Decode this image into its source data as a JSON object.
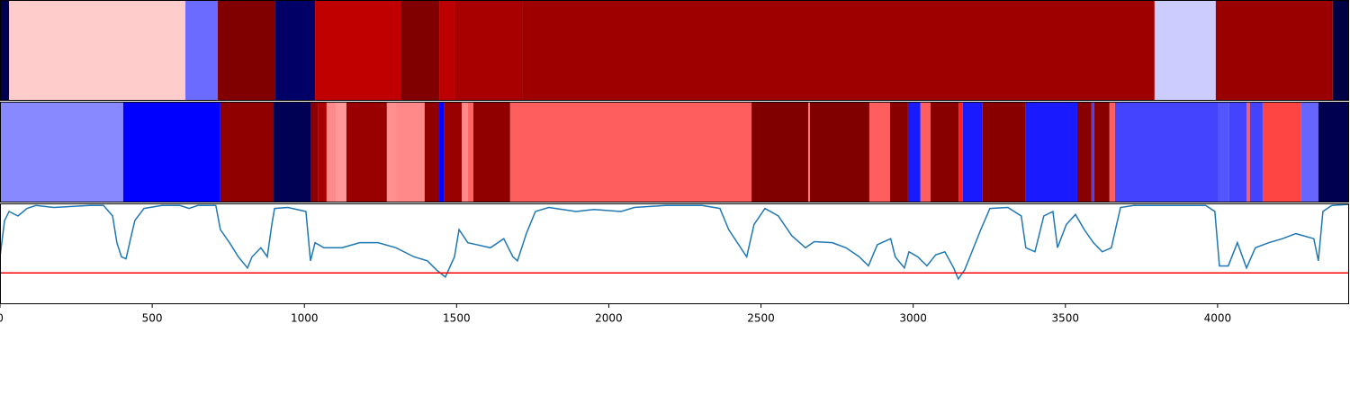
{
  "chart_data": [
    {
      "type": "band",
      "xlim": [
        0,
        4432
      ],
      "segments": [
        {
          "start": 0,
          "end": 30,
          "color": "#000050"
        },
        {
          "start": 30,
          "end": 609,
          "color": "#ffcccc"
        },
        {
          "start": 609,
          "end": 715,
          "color": "#6b6bff"
        },
        {
          "start": 715,
          "end": 905,
          "color": "#800000"
        },
        {
          "start": 905,
          "end": 1035,
          "color": "#000066"
        },
        {
          "start": 1035,
          "end": 1316,
          "color": "#c00000"
        },
        {
          "start": 1316,
          "end": 1443,
          "color": "#800000"
        },
        {
          "start": 1443,
          "end": 1493,
          "color": "#bc0000"
        },
        {
          "start": 1493,
          "end": 1715,
          "color": "#a80000"
        },
        {
          "start": 1715,
          "end": 3793,
          "color": "#9e0000"
        },
        {
          "start": 3793,
          "end": 3994,
          "color": "#ccccff"
        },
        {
          "start": 3994,
          "end": 4378,
          "color": "#9a0000"
        },
        {
          "start": 4378,
          "end": 4432,
          "color": "#000044"
        }
      ]
    },
    {
      "type": "band",
      "xlim": [
        0,
        4432
      ],
      "segments": [
        {
          "start": 0,
          "end": 405,
          "color": "#8888ff"
        },
        {
          "start": 405,
          "end": 724,
          "color": "#0000ff"
        },
        {
          "start": 724,
          "end": 899,
          "color": "#900000"
        },
        {
          "start": 899,
          "end": 1020,
          "color": "#000055"
        },
        {
          "start": 1020,
          "end": 1044,
          "color": "#8b0000"
        },
        {
          "start": 1044,
          "end": 1073,
          "color": "#aa0000"
        },
        {
          "start": 1073,
          "end": 1103,
          "color": "#ff8a8a"
        },
        {
          "start": 1103,
          "end": 1138,
          "color": "#ff9999"
        },
        {
          "start": 1138,
          "end": 1271,
          "color": "#990000"
        },
        {
          "start": 1271,
          "end": 1301,
          "color": "#ff9090"
        },
        {
          "start": 1301,
          "end": 1395,
          "color": "#ff8888"
        },
        {
          "start": 1395,
          "end": 1443,
          "color": "#900000"
        },
        {
          "start": 1443,
          "end": 1460,
          "color": "#0000ff"
        },
        {
          "start": 1460,
          "end": 1517,
          "color": "#990000"
        },
        {
          "start": 1517,
          "end": 1537,
          "color": "#ff8888"
        },
        {
          "start": 1537,
          "end": 1555,
          "color": "#ff6666"
        },
        {
          "start": 1555,
          "end": 1676,
          "color": "#900000"
        },
        {
          "start": 1676,
          "end": 2469,
          "color": "#ff5e5e"
        },
        {
          "start": 2469,
          "end": 2655,
          "color": "#800000"
        },
        {
          "start": 2655,
          "end": 2661,
          "color": "#ff7777"
        },
        {
          "start": 2661,
          "end": 2856,
          "color": "#800000"
        },
        {
          "start": 2856,
          "end": 2924,
          "color": "#ff5e5e"
        },
        {
          "start": 2924,
          "end": 2983,
          "color": "#880000"
        },
        {
          "start": 2983,
          "end": 3024,
          "color": "#1a1aff"
        },
        {
          "start": 3024,
          "end": 3057,
          "color": "#ff5e5e"
        },
        {
          "start": 3057,
          "end": 3149,
          "color": "#880000"
        },
        {
          "start": 3149,
          "end": 3163,
          "color": "#ff2020"
        },
        {
          "start": 3163,
          "end": 3228,
          "color": "#1a1aff"
        },
        {
          "start": 3228,
          "end": 3370,
          "color": "#880000"
        },
        {
          "start": 3370,
          "end": 3539,
          "color": "#1a1aff"
        },
        {
          "start": 3539,
          "end": 3586,
          "color": "#880000"
        },
        {
          "start": 3586,
          "end": 3595,
          "color": "#4444ff"
        },
        {
          "start": 3595,
          "end": 3645,
          "color": "#880000"
        },
        {
          "start": 3645,
          "end": 3663,
          "color": "#ff5e5e"
        },
        {
          "start": 3663,
          "end": 4003,
          "color": "#4444ff"
        },
        {
          "start": 4003,
          "end": 4038,
          "color": "#5555ff"
        },
        {
          "start": 4038,
          "end": 4095,
          "color": "#4444ff"
        },
        {
          "start": 4095,
          "end": 4106,
          "color": "#ff5e5e"
        },
        {
          "start": 4106,
          "end": 4148,
          "color": "#4444ff"
        },
        {
          "start": 4148,
          "end": 4275,
          "color": "#ff4444"
        },
        {
          "start": 4275,
          "end": 4331,
          "color": "#6666ff"
        },
        {
          "start": 4331,
          "end": 4432,
          "color": "#000050"
        }
      ]
    },
    {
      "type": "line",
      "xlim": [
        0,
        4432
      ],
      "ylim": [
        0,
        1
      ],
      "xticks": [
        0,
        500,
        1000,
        1500,
        2000,
        2500,
        3000,
        3500,
        4000
      ],
      "color": "#1f77b4",
      "hline": 0.31,
      "hline_color": "#ff0000",
      "x": [
        0,
        15,
        30,
        59,
        89,
        118,
        177,
        236,
        296,
        340,
        370,
        384,
        399,
        414,
        429,
        443,
        473,
        532,
        591,
        621,
        650,
        709,
        724,
        754,
        783,
        813,
        828,
        857,
        878,
        893,
        902,
        946,
        1005,
        1020,
        1035,
        1064,
        1123,
        1182,
        1242,
        1301,
        1360,
        1404,
        1434,
        1463,
        1493,
        1508,
        1537,
        1567,
        1611,
        1655,
        1685,
        1700,
        1729,
        1759,
        1803,
        1892,
        1951,
        2040,
        2084,
        2187,
        2306,
        2365,
        2394,
        2453,
        2477,
        2513,
        2557,
        2601,
        2646,
        2675,
        2734,
        2779,
        2823,
        2853,
        2882,
        2926,
        2941,
        2971,
        2986,
        3015,
        3045,
        3074,
        3104,
        3133,
        3148,
        3169,
        3193,
        3222,
        3252,
        3311,
        3355,
        3370,
        3400,
        3429,
        3459,
        3474,
        3503,
        3533,
        3562,
        3592,
        3621,
        3651,
        3681,
        3725,
        3814,
        3961,
        3991,
        4006,
        4035,
        4065,
        4095,
        4124,
        4168,
        4213,
        4257,
        4316,
        4331,
        4346,
        4375,
        4431
      ],
      "values": [
        0.47,
        0.83,
        0.92,
        0.875,
        0.95,
        0.98,
        0.96,
        0.97,
        0.98,
        0.98,
        0.875,
        0.61,
        0.47,
        0.45,
        0.65,
        0.83,
        0.95,
        0.98,
        0.98,
        0.95,
        0.98,
        0.98,
        0.74,
        0.61,
        0.47,
        0.36,
        0.47,
        0.56,
        0.47,
        0.79,
        0.95,
        0.96,
        0.92,
        0.43,
        0.61,
        0.56,
        0.56,
        0.61,
        0.61,
        0.56,
        0.47,
        0.43,
        0.34,
        0.27,
        0.47,
        0.74,
        0.61,
        0.59,
        0.56,
        0.65,
        0.47,
        0.43,
        0.7,
        0.92,
        0.96,
        0.92,
        0.94,
        0.92,
        0.96,
        0.98,
        0.98,
        0.95,
        0.74,
        0.47,
        0.79,
        0.95,
        0.875,
        0.68,
        0.56,
        0.62,
        0.61,
        0.56,
        0.47,
        0.38,
        0.59,
        0.65,
        0.47,
        0.36,
        0.52,
        0.47,
        0.38,
        0.49,
        0.52,
        0.36,
        0.25,
        0.34,
        0.52,
        0.74,
        0.95,
        0.96,
        0.875,
        0.56,
        0.52,
        0.875,
        0.92,
        0.56,
        0.79,
        0.89,
        0.74,
        0.61,
        0.52,
        0.56,
        0.96,
        0.98,
        0.98,
        0.98,
        0.92,
        0.38,
        0.38,
        0.61,
        0.36,
        0.56,
        0.61,
        0.65,
        0.7,
        0.65,
        0.43,
        0.92,
        0.98,
        0.99
      ]
    }
  ]
}
